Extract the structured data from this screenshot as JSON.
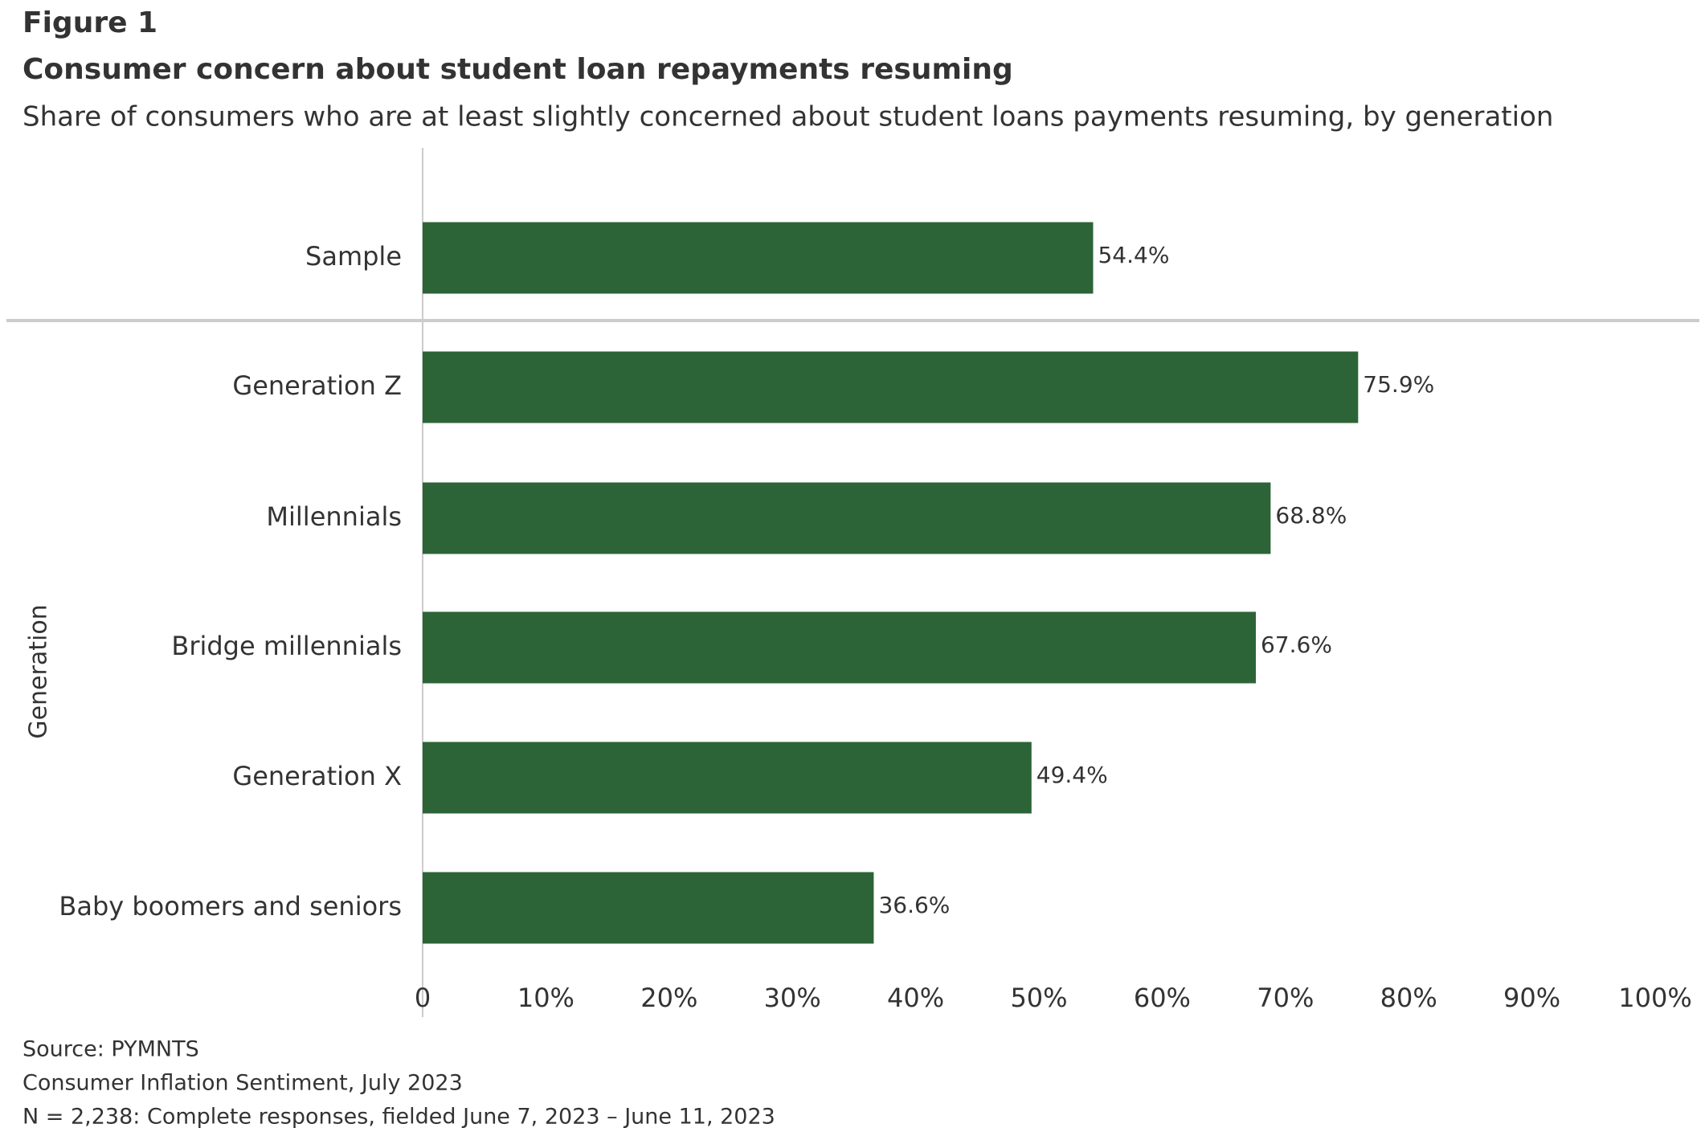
{
  "chart_data": {
    "type": "bar",
    "orientation": "horizontal",
    "figure_label": "Figure 1",
    "title": "Consumer concern about student loan repayments resuming",
    "subtitle": "Share of consumers who are at least slightly concerned about student loans payments resuming, by generation",
    "y_label": "Generation",
    "categories": [
      "Sample",
      "Generation Z",
      "Millennials",
      "Bridge millennials",
      "Generation X",
      "Baby boomers and seniors"
    ],
    "values": [
      54.4,
      75.9,
      68.8,
      67.6,
      49.4,
      36.6
    ],
    "value_labels": [
      "54.4%",
      "75.9%",
      "68.8%",
      "67.6%",
      "49.4%",
      "36.6%"
    ],
    "color": "#2c6437",
    "xlim": [
      0,
      100
    ],
    "xticks": [
      0,
      {
        "value": 10,
        "label": "10%"
      },
      {
        "value": 20,
        "label": "20%"
      },
      {
        "value": 30,
        "label": "30%"
      },
      {
        "value": 40,
        "label": "40%"
      },
      {
        "value": 50,
        "label": "50%"
      },
      {
        "value": 60,
        "label": "60%"
      },
      {
        "value": 70,
        "label": "70%"
      },
      {
        "value": 80,
        "label": "80%"
      },
      {
        "value": 90,
        "label": "90%"
      },
      {
        "value": 100,
        "label": "100%"
      }
    ],
    "footnotes": [
      "Source: PYMNTS",
      "Consumer Inflation Sentiment, July 2023",
      "N = 2,238: Complete responses, fielded June 7, 2023 – June 11, 2023"
    ]
  }
}
